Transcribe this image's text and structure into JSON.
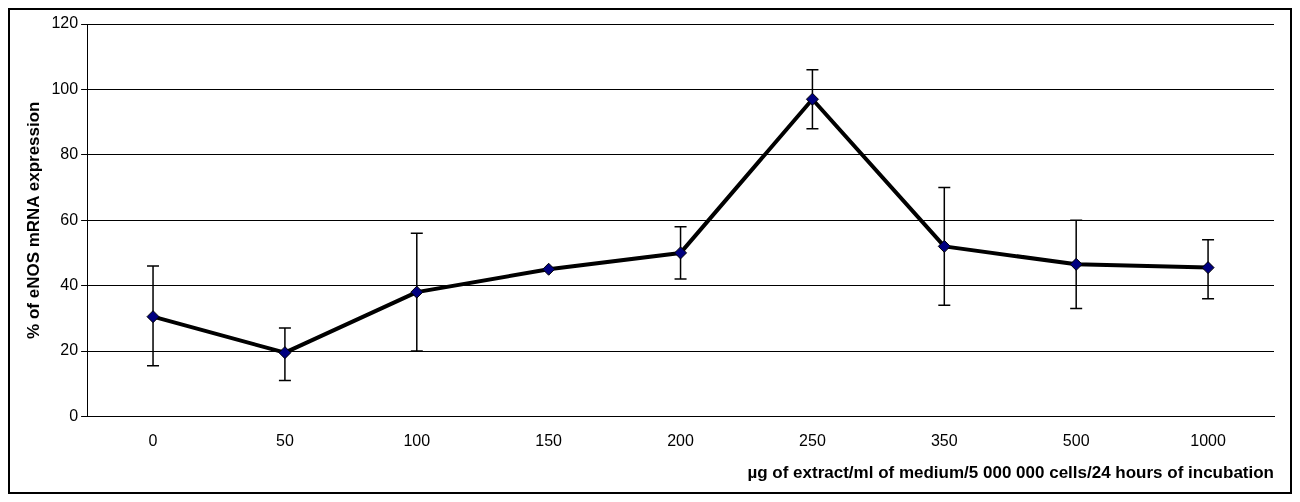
{
  "chart_data": {
    "type": "line",
    "xlabel": "µg of extract/ml of medium/5 000 000 cells/24 hours of incubation",
    "ylabel": "% of eNOS mRNA expression",
    "categories": [
      "0",
      "50",
      "100",
      "150",
      "200",
      "250",
      "350",
      "500",
      "1000"
    ],
    "series": [
      {
        "color": "#000080",
        "values": [
          30.5,
          19.5,
          38,
          45,
          50,
          97,
          52,
          46.5,
          45.5
        ],
        "errors": [
          [
            15.5,
            46
          ],
          [
            11,
            27
          ],
          [
            20,
            56
          ],
          null,
          [
            42,
            58
          ],
          [
            88,
            106
          ],
          [
            34,
            70
          ],
          [
            33,
            60
          ],
          [
            36,
            54
          ]
        ]
      }
    ],
    "ylim": [
      0,
      120
    ],
    "yticks": [
      0,
      20,
      40,
      60,
      80,
      100,
      120
    ],
    "grid": "y",
    "legend": false,
    "marker": "diamond",
    "line_style": "solid"
  }
}
